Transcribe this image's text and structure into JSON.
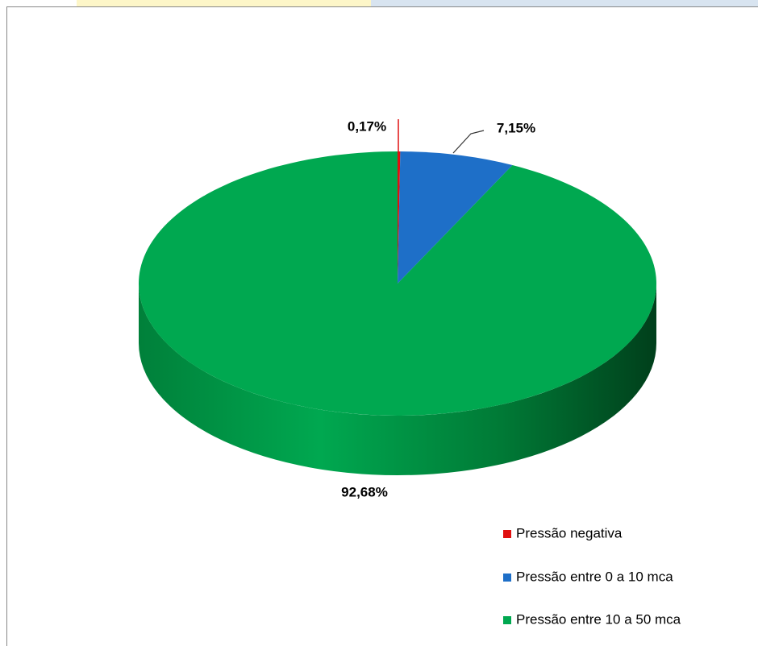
{
  "chart_data": {
    "type": "pie",
    "categories": [
      "Pressão negativa",
      "Pressão entre 0 a 10 mca",
      "Pressão entre 10 a 50 mca"
    ],
    "values": [
      0.17,
      7.15,
      92.68
    ],
    "value_labels": [
      "0,17%",
      "7,15%",
      "92,68%"
    ],
    "colors": [
      "#e01010",
      "#1e6fc8",
      "#00a850"
    ],
    "legend": "bottom-right"
  }
}
